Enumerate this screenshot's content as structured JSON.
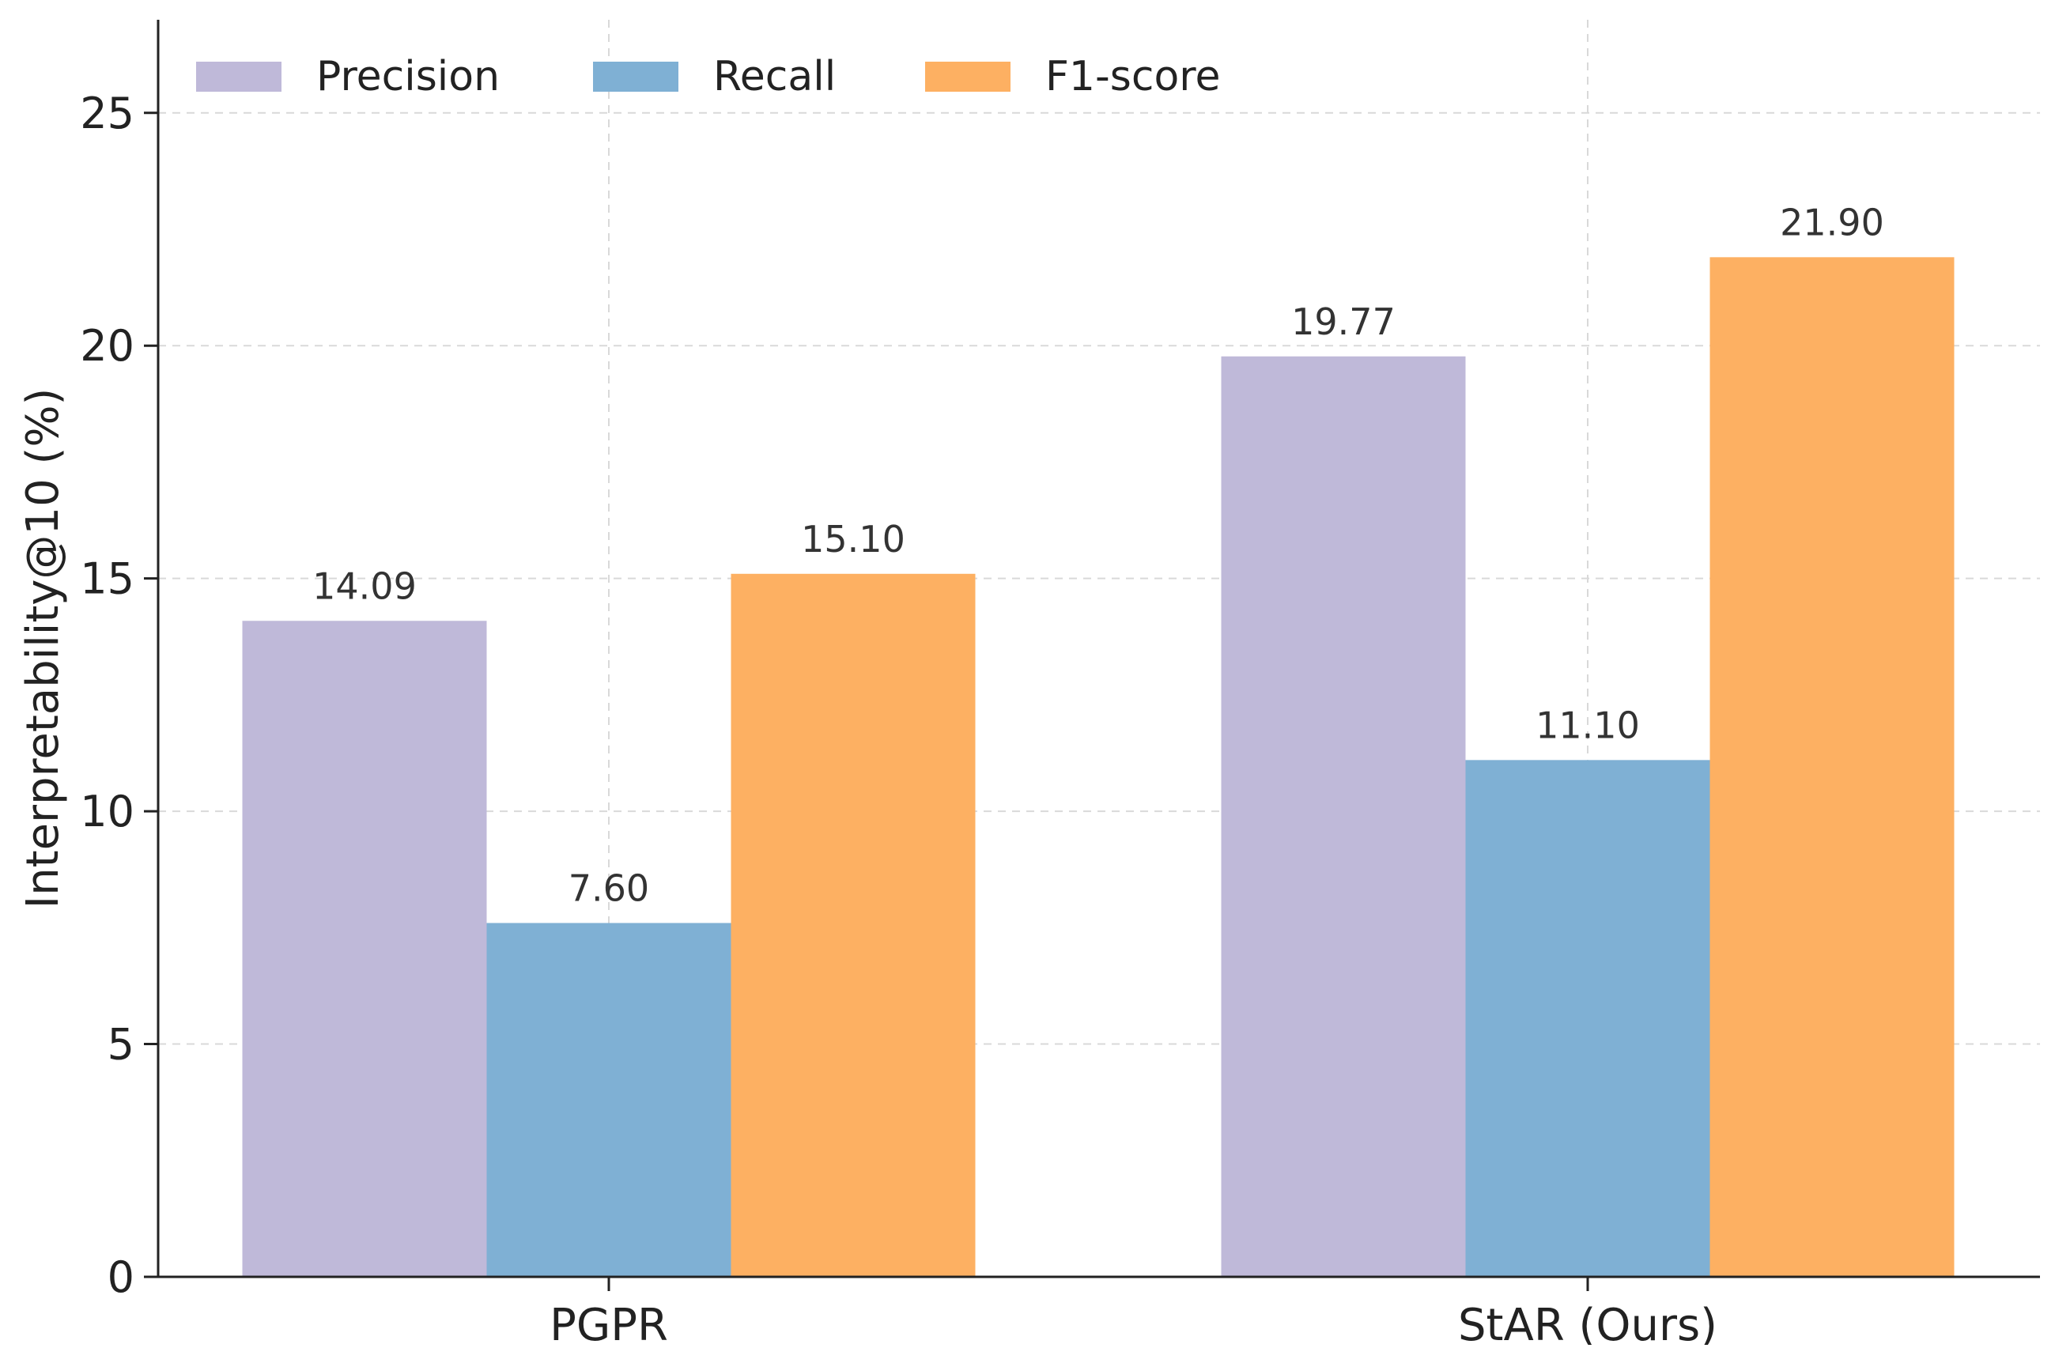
{
  "chart_data": {
    "type": "bar",
    "title": "",
    "xlabel": "",
    "ylabel": "Interpretability@10 (%)",
    "categories": [
      "PGPR",
      "StAR (Ours)"
    ],
    "series": [
      {
        "name": "Precision",
        "values": [
          14.09,
          19.77
        ],
        "labels": [
          "14.09",
          "19.77"
        ]
      },
      {
        "name": "Recall",
        "values": [
          7.6,
          11.1
        ],
        "labels": [
          "7.60",
          "11.10"
        ]
      },
      {
        "name": "F1-score",
        "values": [
          15.1,
          21.9
        ],
        "labels": [
          "15.10",
          "21.90"
        ]
      }
    ],
    "ylim": [
      0,
      27
    ],
    "yticks": [
      0,
      5,
      10,
      15,
      20,
      25
    ],
    "ytick_labels": [
      "0",
      "5",
      "10",
      "15",
      "20",
      "25"
    ],
    "grid": true,
    "legend": {
      "position": "top-left",
      "orientation": "horizontal"
    },
    "colors": {
      "Precision": "#bfb9d9",
      "Recall": "#7fb0d4",
      "F1-score": "#fdb062",
      "axis": "#222222",
      "grid": "#d9d9d9",
      "text": "#222222",
      "label": "#333333"
    }
  }
}
